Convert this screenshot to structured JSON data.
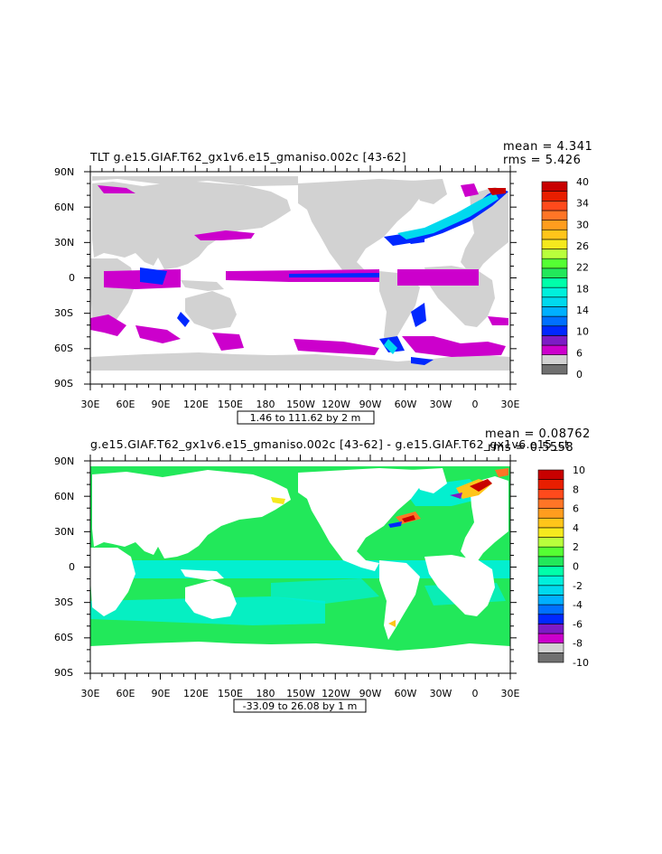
{
  "panels": [
    {
      "title": "TLT g.e15.GIAF.T62_gx1v6.e15_gmaniso.002c  [43-62]",
      "mean_label": "mean = 4.341",
      "rms_label": "rms = 5.426",
      "range_label": "1.46 to 111.62 by 2 m",
      "colorbar": {
        "colors": [
          "#707070",
          "#d2d2d2",
          "#cc00cc",
          "#7d1bc6",
          "#0028ff",
          "#0070ff",
          "#00b0ff",
          "#00d9ee",
          "#00f0dc",
          "#00ffaa",
          "#22e85a",
          "#55ff33",
          "#b9ff3c",
          "#f5e91e",
          "#ffc51a",
          "#ff9d1e",
          "#ff7526",
          "#ff4a1c",
          "#e81e00",
          "#c80000"
        ],
        "labels": [
          "0",
          "6",
          "10",
          "14",
          "18",
          "22",
          "26",
          "30",
          "34",
          "40"
        ]
      },
      "legend_colors": {
        "land": "#d2d2d2",
        "ocean_background": "#ffffff",
        "band_low": "#cc00cc",
        "band_mid": "#0028ff",
        "band_high": "#00d9ee"
      }
    },
    {
      "title": "g.e15.GIAF.T62_gx1v6.e15_gmaniso.002c  [43-62]  - g.e15.GIAF.T62_gx1v6.e15_ct",
      "mean_label": "mean = 0.08762",
      "rms_label": "rms = 0.5558",
      "range_label": "-33.09 to 26.08 by 1 m",
      "colorbar": {
        "colors": [
          "#707070",
          "#d2d2d2",
          "#cc00cc",
          "#7d1bc6",
          "#0028ff",
          "#0070ff",
          "#00b0ff",
          "#00d9ee",
          "#00f0dc",
          "#00ffaa",
          "#22e85a",
          "#55ff33",
          "#b9ff3c",
          "#f5e91e",
          "#ffc51a",
          "#ff9d1e",
          "#ff7526",
          "#ff4a1c",
          "#e81e00",
          "#c80000"
        ],
        "labels": [
          "-10",
          "-8",
          "-6",
          "-4",
          "-2",
          "0",
          "2",
          "4",
          "6",
          "8",
          "10"
        ]
      },
      "legend_colors": {
        "ocean_main": "#22e85a",
        "ocean_alt": "#00f0dc",
        "land": "#ffffff"
      }
    }
  ],
  "axes": {
    "lat_labels": [
      "90N",
      "60N",
      "30N",
      "0",
      "30S",
      "60S",
      "90S"
    ],
    "lon_labels": [
      "30E",
      "60E",
      "90E",
      "120E",
      "150E",
      "180",
      "150W",
      "120W",
      "90W",
      "60W",
      "30W",
      "0",
      "30E"
    ]
  }
}
